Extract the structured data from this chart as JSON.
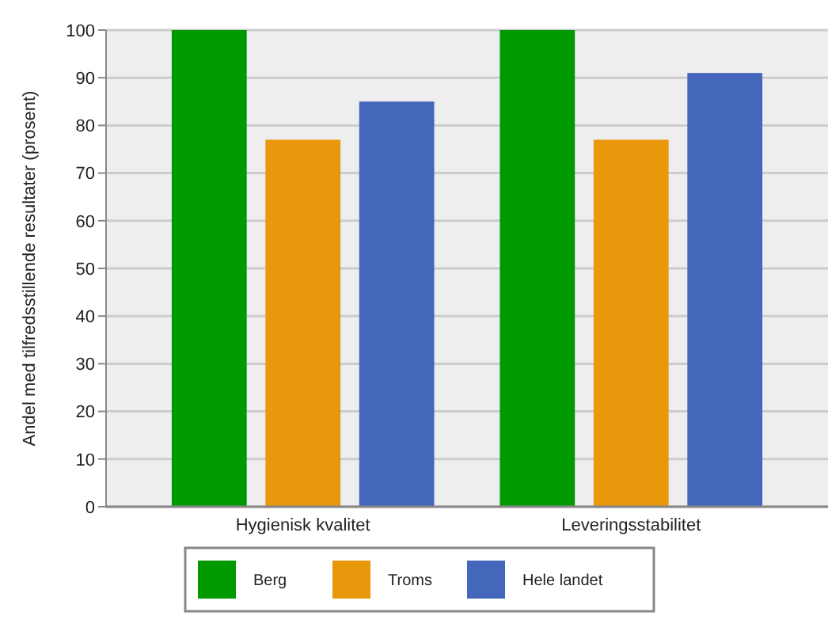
{
  "chart_data": {
    "type": "bar",
    "ylabel": "Andel med tilfredsstillende resultater (prosent)",
    "categories": [
      "Hygienisk kvalitet",
      "Leveringsstabilitet"
    ],
    "series": [
      {
        "name": "Berg",
        "color": "#009900",
        "values": [
          100,
          100
        ]
      },
      {
        "name": "Troms",
        "color": "#e8980a",
        "values": [
          77,
          77
        ]
      },
      {
        "name": "Hele landet",
        "color": "#4466bb",
        "values": [
          85,
          91
        ]
      }
    ],
    "ylim": [
      0,
      100
    ],
    "yticks": [
      0,
      10,
      20,
      30,
      40,
      50,
      60,
      70,
      80,
      90,
      100
    ],
    "grid": "y",
    "legend": "bottom"
  }
}
